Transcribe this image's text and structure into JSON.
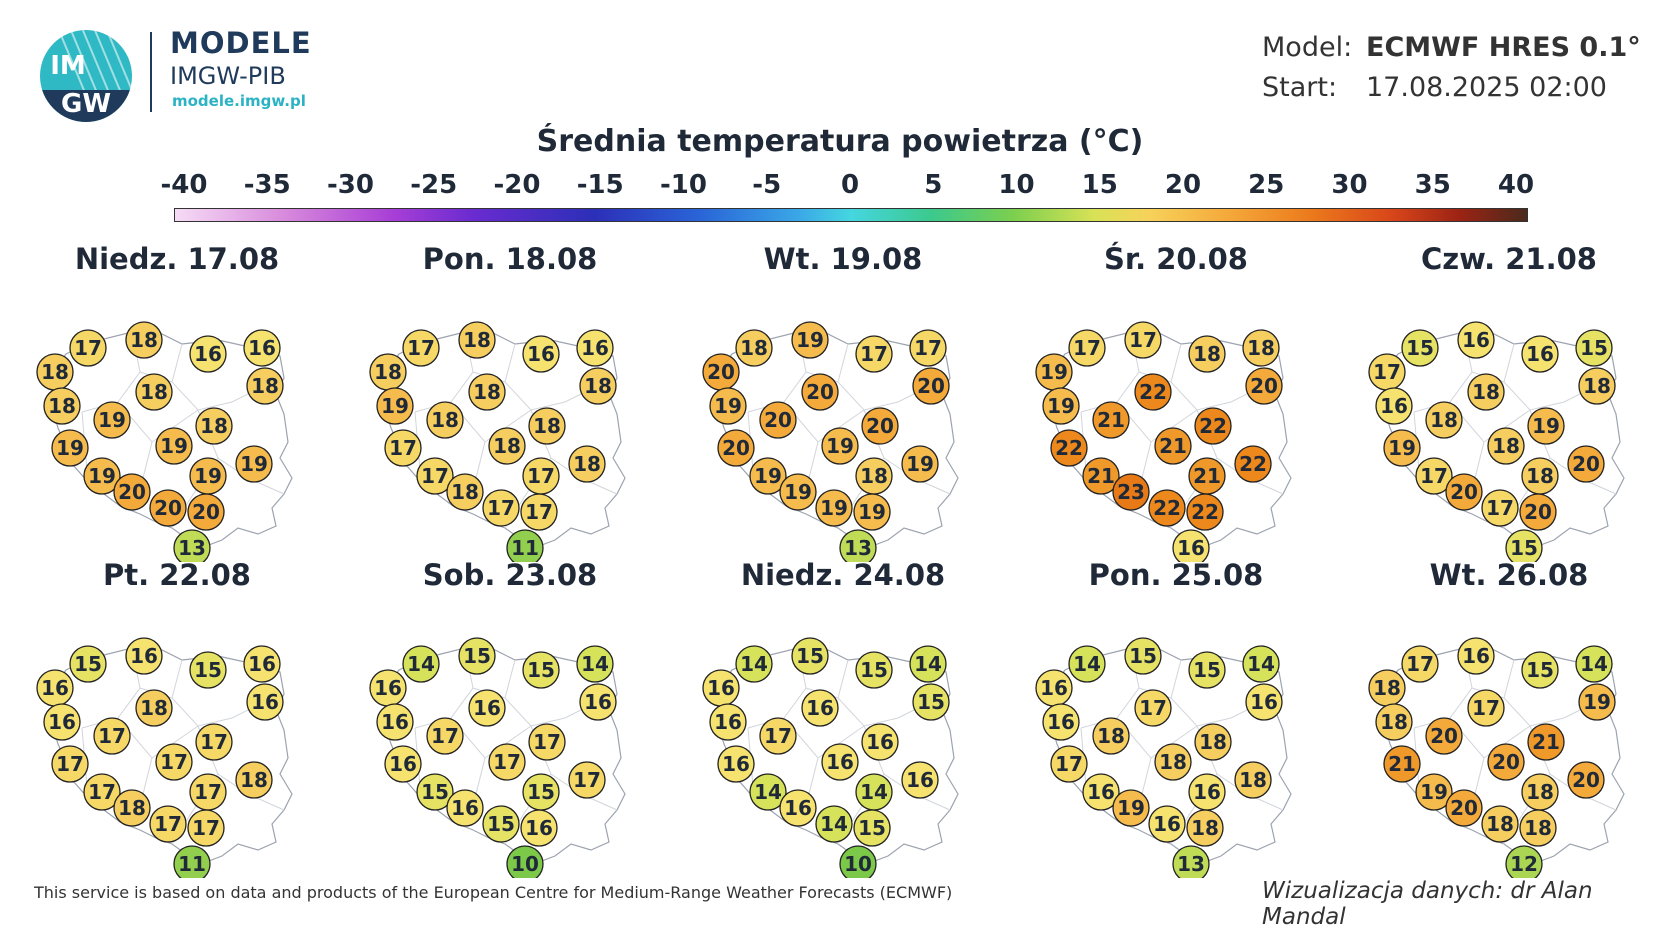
{
  "header": {
    "logo_text_top": "IM",
    "logo_text_bottom": "GW",
    "brand_title": "MODELE",
    "brand_sub": "IMGW-PIB",
    "brand_url": "modele.imgw.pl",
    "model_label": "Model:",
    "model_value": "ECMWF HRES 0.1°",
    "start_label": "Start:",
    "start_value": "17.08.2025 02:00"
  },
  "title": "Średnia temperatura powietrza (°C)",
  "legend": {
    "ticks": [
      "-40",
      "-35",
      "-30",
      "-25",
      "-20",
      "-15",
      "-10",
      "-5",
      "0",
      "5",
      "10",
      "15",
      "20",
      "25",
      "30",
      "35",
      "40"
    ]
  },
  "panels": [
    {
      "date": "Niedz. 17.08",
      "values": [
        17,
        18,
        18,
        16,
        16,
        18,
        18,
        18,
        19,
        18,
        19,
        19,
        19,
        19,
        19,
        20,
        20,
        20,
        13
      ]
    },
    {
      "date": "Pon. 18.08",
      "values": [
        17,
        18,
        18,
        16,
        16,
        18,
        19,
        18,
        18,
        18,
        17,
        18,
        18,
        17,
        17,
        18,
        17,
        17,
        11
      ]
    },
    {
      "date": "Wt. 19.08",
      "values": [
        18,
        19,
        20,
        17,
        17,
        20,
        19,
        20,
        20,
        20,
        20,
        19,
        19,
        19,
        18,
        19,
        19,
        19,
        13
      ]
    },
    {
      "date": "Śr. 20.08",
      "values": [
        17,
        17,
        19,
        18,
        18,
        20,
        19,
        22,
        21,
        22,
        22,
        21,
        22,
        21,
        21,
        23,
        22,
        22,
        16
      ]
    },
    {
      "date": "Czw. 21.08",
      "values": [
        15,
        16,
        17,
        16,
        15,
        18,
        16,
        18,
        18,
        19,
        19,
        18,
        20,
        17,
        18,
        20,
        17,
        20,
        15
      ]
    },
    {
      "date": "Pt. 22.08",
      "values": [
        15,
        16,
        16,
        15,
        16,
        16,
        16,
        18,
        17,
        17,
        17,
        17,
        18,
        17,
        17,
        18,
        17,
        17,
        11
      ]
    },
    {
      "date": "Sob. 23.08",
      "values": [
        14,
        15,
        16,
        15,
        14,
        16,
        16,
        16,
        17,
        17,
        16,
        17,
        17,
        15,
        15,
        16,
        15,
        16,
        10
      ]
    },
    {
      "date": "Niedz. 24.08",
      "values": [
        14,
        15,
        16,
        15,
        14,
        15,
        16,
        16,
        17,
        16,
        16,
        16,
        16,
        14,
        14,
        16,
        14,
        15,
        10
      ]
    },
    {
      "date": "Pon. 25.08",
      "values": [
        14,
        15,
        16,
        15,
        14,
        16,
        16,
        17,
        18,
        18,
        17,
        18,
        18,
        16,
        16,
        19,
        16,
        18,
        13
      ]
    },
    {
      "date": "Wt. 26.08",
      "values": [
        17,
        16,
        18,
        15,
        14,
        19,
        18,
        17,
        20,
        21,
        21,
        20,
        20,
        19,
        18,
        20,
        18,
        18,
        12
      ]
    }
  ],
  "footer": {
    "left": "This service is based on data and products of the European Centre for Medium-Range Weather Forecasts (ECMWF)",
    "right": "Wizualizacja danych: dr Alan Mandal"
  }
}
